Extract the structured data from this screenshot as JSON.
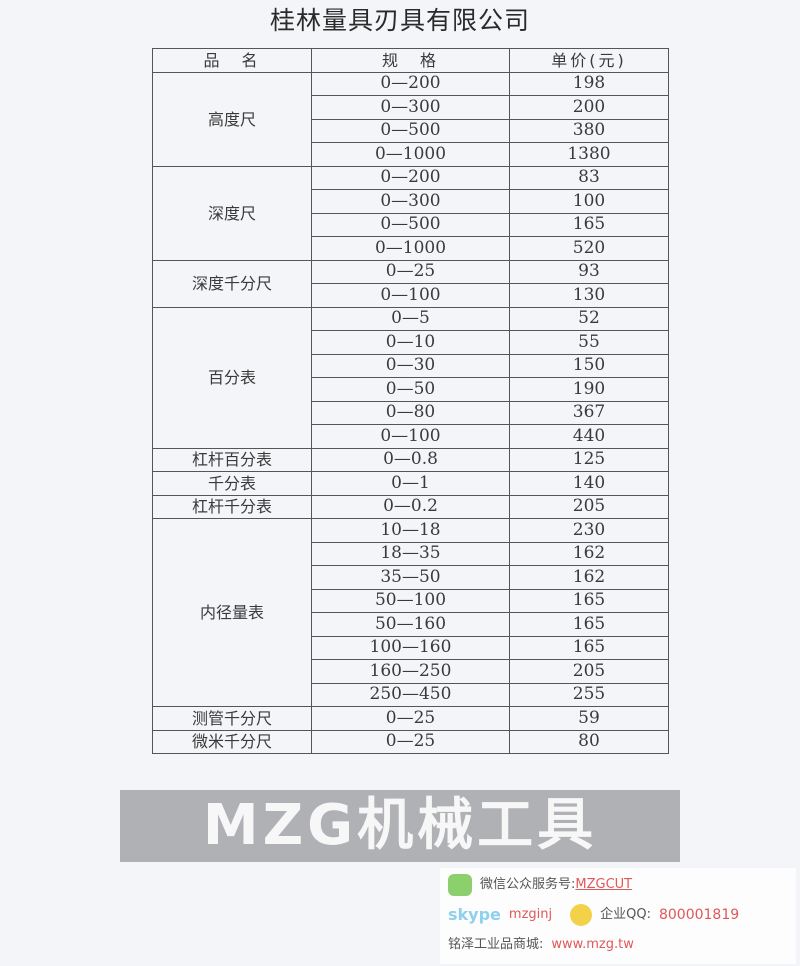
{
  "title": "桂林量具刃具有限公司",
  "headers": [
    "品　名",
    "规　格",
    "单价(元)"
  ],
  "groups": [
    {
      "name": "高度尺",
      "rows": [
        [
          "0—200",
          "198"
        ],
        [
          "0—300",
          "200"
        ],
        [
          "0—500",
          "380"
        ],
        [
          "0—1000",
          "1380"
        ]
      ]
    },
    {
      "name": "深度尺",
      "rows": [
        [
          "0—200",
          "83"
        ],
        [
          "0—300",
          "100"
        ],
        [
          "0—500",
          "165"
        ],
        [
          "0—1000",
          "520"
        ]
      ]
    },
    {
      "name": "深度千分尺",
      "rows": [
        [
          "0—25",
          "93"
        ],
        [
          "0—100",
          "130"
        ]
      ]
    },
    {
      "name": "百分表",
      "rows": [
        [
          "0—5",
          "52"
        ],
        [
          "0—10",
          "55"
        ],
        [
          "0—30",
          "150"
        ],
        [
          "0—50",
          "190"
        ],
        [
          "0—80",
          "367"
        ],
        [
          "0—100",
          "440"
        ]
      ]
    },
    {
      "name": "杠杆百分表",
      "rows": [
        [
          "0—0.8",
          "125"
        ]
      ]
    },
    {
      "name": "千分表",
      "rows": [
        [
          "0—1",
          "140"
        ]
      ]
    },
    {
      "name": "杠杆千分表",
      "rows": [
        [
          "0—0.2",
          "205"
        ]
      ]
    },
    {
      "name": "内径量表",
      "rows": [
        [
          "10—18",
          "230"
        ],
        [
          "18—35",
          "162"
        ],
        [
          "35—50",
          "162"
        ],
        [
          "50—100",
          "165"
        ],
        [
          "50—160",
          "165"
        ],
        [
          "100—160",
          "165"
        ],
        [
          "160—250",
          "205"
        ],
        [
          "250—450",
          "255"
        ]
      ]
    },
    {
      "name": "测管千分尺",
      "rows": [
        [
          "0—25",
          "59"
        ]
      ]
    },
    {
      "name": "微米千分尺",
      "rows": [
        [
          "0—25",
          "80"
        ]
      ]
    }
  ],
  "watermark": "MZG机械工具",
  "promo": {
    "wechat_label": "微信公众服务号:",
    "wechat_id": "MZGCUT",
    "skype_logo": "skype",
    "skype_id": "mzginj",
    "qq_label": "企业QQ:",
    "qq_number": "800001819",
    "shop_label": "铭泽工业品商城:",
    "shop_url": "www.mzg.tw"
  }
}
